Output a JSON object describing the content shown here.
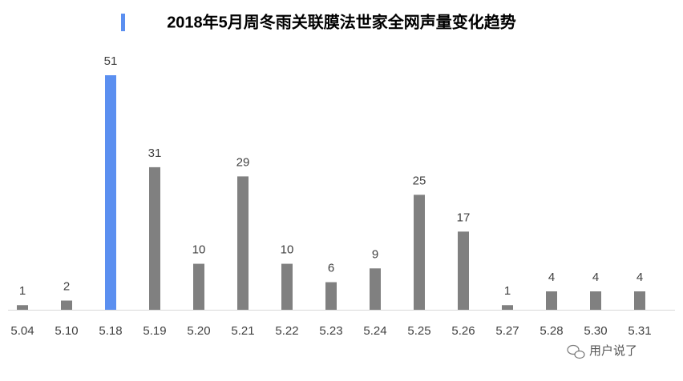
{
  "chart_data": {
    "type": "bar",
    "title": "2018年5月周冬雨关联膜法世家全网声量变化趋势",
    "categories": [
      "5.04",
      "5.10",
      "5.18",
      "5.19",
      "5.20",
      "5.21",
      "5.22",
      "5.23",
      "5.24",
      "5.25",
      "5.26",
      "5.27",
      "5.28",
      "5.30",
      "5.31"
    ],
    "values": [
      1,
      2,
      51,
      31,
      10,
      29,
      10,
      6,
      9,
      25,
      17,
      1,
      4,
      4,
      4
    ],
    "colors": [
      "#808080",
      "#808080",
      "#5b8ff0",
      "#808080",
      "#808080",
      "#808080",
      "#808080",
      "#808080",
      "#808080",
      "#808080",
      "#808080",
      "#808080",
      "#808080",
      "#808080",
      "#808080"
    ]
  },
  "watermark": "用户说了"
}
